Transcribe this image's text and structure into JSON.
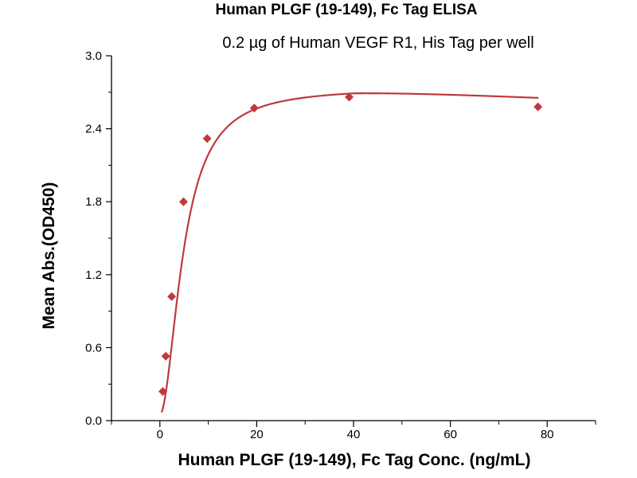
{
  "chart_data": {
    "type": "scatter",
    "title": "Human PLGF (19-149), Fc Tag ELISA",
    "subtitle": "0.2 µg of Human VEGF R1, His Tag per well",
    "xlabel": "Human PLGF (19-149), Fc Tag Conc. (ng/mL)",
    "ylabel": "Mean Abs.(OD450)",
    "xlim": [
      -10,
      90
    ],
    "ylim": [
      0,
      3.0
    ],
    "x_ticks": [
      "0",
      "20",
      "40",
      "60",
      "80"
    ],
    "y_ticks": [
      "0.0",
      "0.6",
      "1.2",
      "1.8",
      "2.4",
      "3.0"
    ],
    "grid": false,
    "legend": "none",
    "colors": {
      "marker": "#c0393b",
      "curve": "#c0393b",
      "axis": "#000000"
    },
    "series": [
      {
        "marker": "diamond",
        "x": [
          0.61,
          1.22,
          2.44,
          4.88,
          9.77,
          19.5,
          39.1,
          78.1
        ],
        "y": [
          0.24,
          0.53,
          1.02,
          1.8,
          2.32,
          2.57,
          2.66,
          2.58
        ]
      }
    ],
    "fit_curve": "four-parameter logistic"
  }
}
